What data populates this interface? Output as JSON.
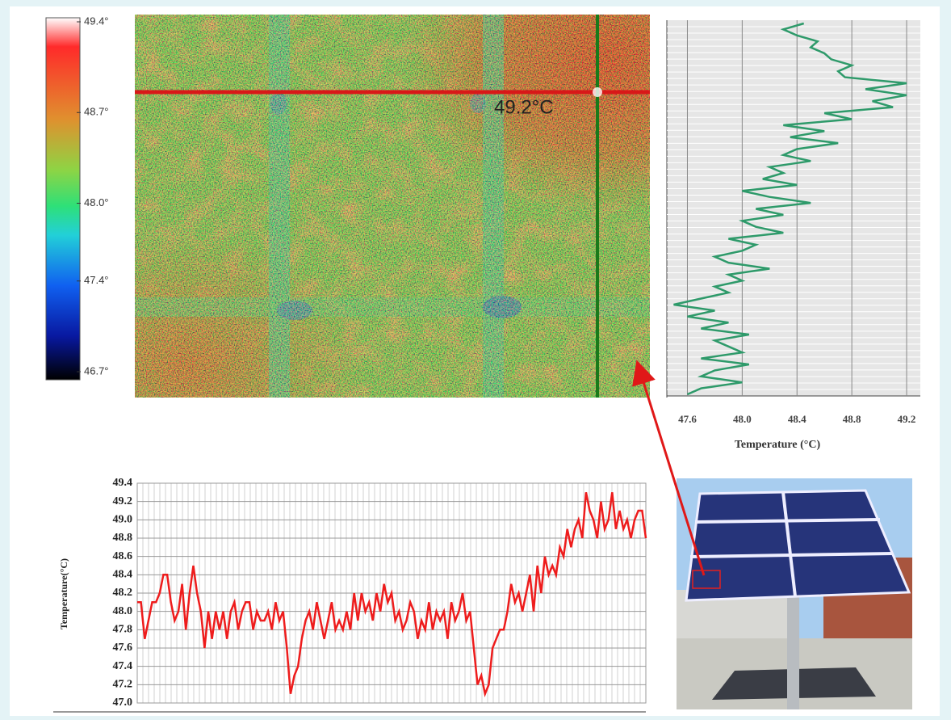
{
  "chart_data": [
    {
      "type": "heatmap",
      "clim": [
        46.7,
        49.4
      ],
      "cticks": [
        {
          "value": 49.4,
          "label": "49.4°"
        },
        {
          "value": 48.7,
          "label": "48.7°"
        },
        {
          "value": 48.0,
          "label": "48.0°"
        },
        {
          "value": 47.4,
          "label": "47.4°"
        },
        {
          "value": 46.7,
          "label": "46.7°"
        }
      ],
      "annotation": "49.2°C"
    },
    {
      "type": "line",
      "orientation": "vertical",
      "xlabel": "Temperature (°C)",
      "color": "#2e9a6a",
      "xlim": [
        47.45,
        49.3
      ],
      "xticks": [
        47.6,
        {
          "value": 48.0,
          "label": "48.0"
        },
        48.4,
        48.8,
        49.2
      ],
      "values": [
        48.45,
        48.3,
        48.4,
        48.55,
        48.5,
        48.6,
        48.65,
        48.8,
        48.7,
        48.75,
        49.2,
        48.9,
        49.2,
        48.95,
        49.1,
        48.6,
        48.8,
        48.3,
        48.6,
        48.35,
        48.7,
        48.4,
        48.3,
        48.5,
        48.2,
        48.3,
        48.15,
        48.4,
        48.0,
        48.2,
        48.5,
        48.1,
        48.3,
        48.0,
        48.1,
        48.3,
        47.9,
        48.1,
        48.0,
        47.8,
        47.9,
        48.2,
        47.9,
        48.0,
        47.8,
        47.9,
        47.7,
        47.5,
        47.8,
        47.6,
        47.9,
        47.7,
        48.05,
        47.8,
        47.9,
        48.0,
        47.7,
        48.05,
        47.8,
        47.7,
        48.0,
        47.7,
        47.6
      ]
    },
    {
      "type": "line",
      "ylabel": "Temperature(°C)",
      "color": "#ee1c1c",
      "ylim": [
        47.0,
        49.4
      ],
      "yticks": [
        {
          "value": 47.0,
          "label": "47.0"
        },
        47.2,
        47.4,
        47.6,
        47.8,
        {
          "value": 48.0,
          "label": "48.0"
        },
        48.2,
        48.4,
        48.6,
        48.8,
        {
          "value": 49.0,
          "label": "49.0"
        },
        49.2,
        49.4
      ],
      "values": [
        48.1,
        48.1,
        47.7,
        47.9,
        48.1,
        48.1,
        48.2,
        48.4,
        48.4,
        48.1,
        47.9,
        48.0,
        48.3,
        47.8,
        48.2,
        48.5,
        48.2,
        48.0,
        47.6,
        48.0,
        47.7,
        48.0,
        47.8,
        48.0,
        47.7,
        48.0,
        48.1,
        47.8,
        48.0,
        48.1,
        48.1,
        47.8,
        48.0,
        47.9,
        47.9,
        48.0,
        47.8,
        48.1,
        47.9,
        48.0,
        47.6,
        47.1,
        47.3,
        47.4,
        47.7,
        47.9,
        48.0,
        47.8,
        48.1,
        47.9,
        47.7,
        47.9,
        48.1,
        47.8,
        47.9,
        47.8,
        48.0,
        47.8,
        48.2,
        47.9,
        48.2,
        48.0,
        48.1,
        47.9,
        48.2,
        48.0,
        48.3,
        48.1,
        48.2,
        47.9,
        48.0,
        47.8,
        47.9,
        48.1,
        48.0,
        47.7,
        47.9,
        47.8,
        48.1,
        47.8,
        48.0,
        47.9,
        48.0,
        47.7,
        48.1,
        47.9,
        48.0,
        48.2,
        47.9,
        48.0,
        47.6,
        47.2,
        47.3,
        47.1,
        47.2,
        47.6,
        47.7,
        47.8,
        47.8,
        48.0,
        48.3,
        48.1,
        48.2,
        48.0,
        48.2,
        48.4,
        48.0,
        48.5,
        48.2,
        48.6,
        48.4,
        48.5,
        48.4,
        48.7,
        48.6,
        48.9,
        48.7,
        48.9,
        49.0,
        48.8,
        49.3,
        49.1,
        49.0,
        48.8,
        49.2,
        48.9,
        49.0,
        49.3,
        48.9,
        49.1,
        48.9,
        49.0,
        48.8,
        49.0,
        49.1,
        49.1,
        48.8
      ]
    }
  ]
}
